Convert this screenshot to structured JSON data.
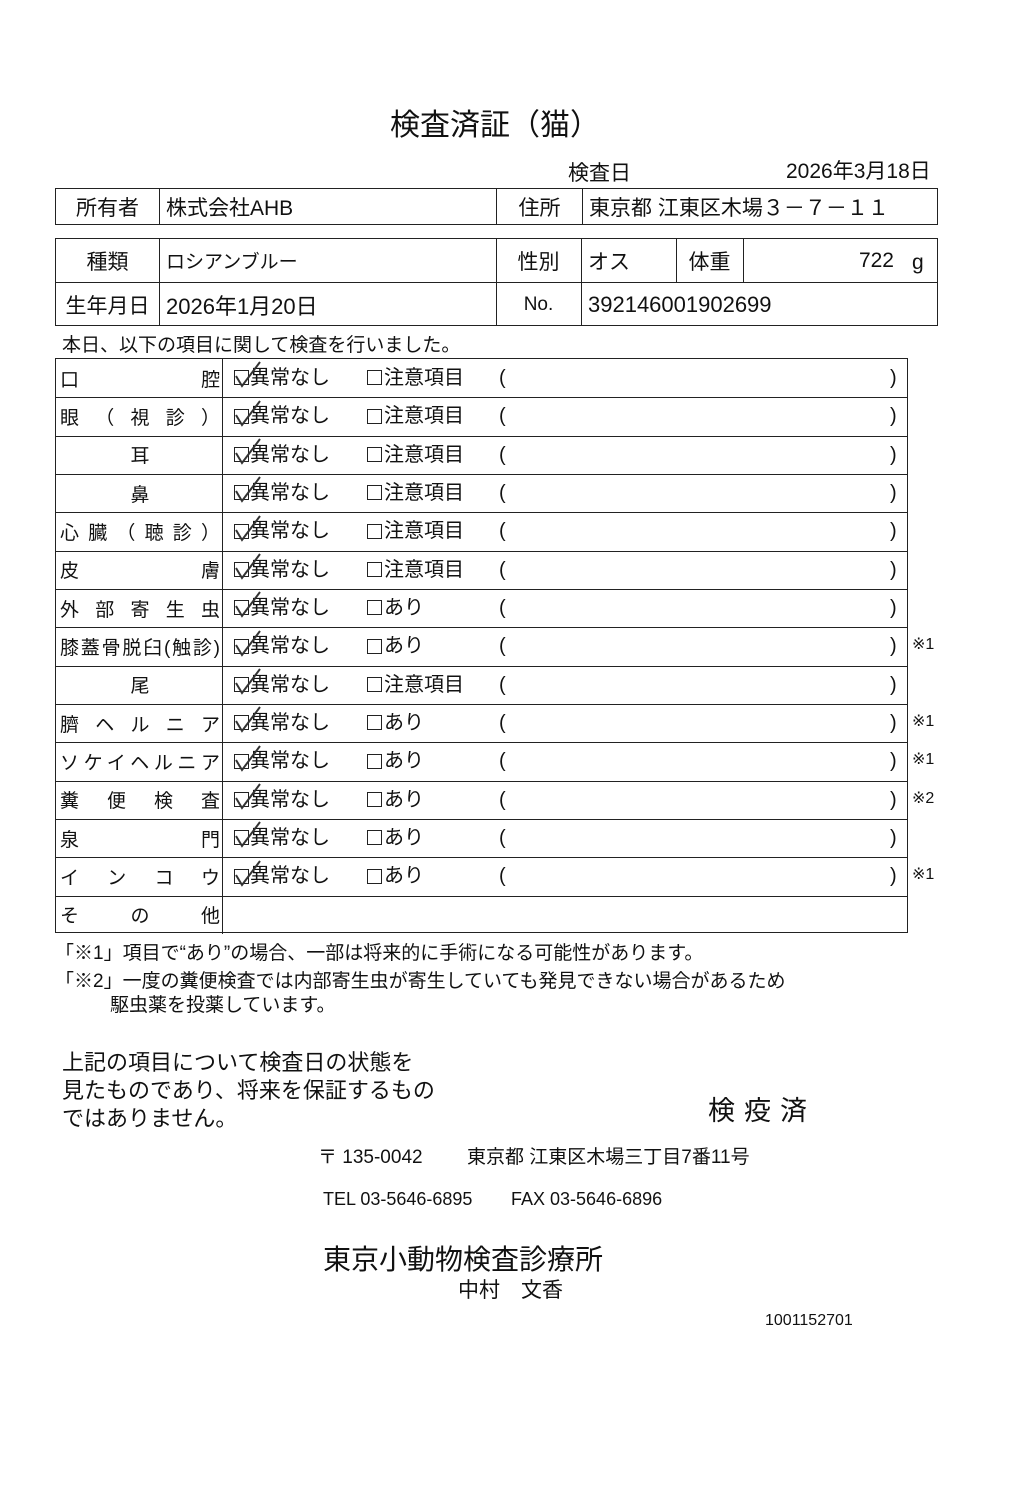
{
  "header": {
    "title": "検査済証（猫）",
    "exam_date_label": "検査日",
    "exam_date": "2026年3月18日"
  },
  "info": {
    "owner_label": "所有者",
    "owner": "株式会社AHB",
    "address_label": "住所",
    "address": "東京都 江東区木場３－７－１１",
    "breed_label": "種類",
    "breed": "ロシアンブルー",
    "sex_label": "性別",
    "sex": "オス",
    "weight_label": "体重",
    "weight": "722",
    "weight_unit": "g",
    "birth_label": "生年月日",
    "birth": "2026年1月20日",
    "no_label": "No.",
    "no": "392146001902699"
  },
  "checklist": {
    "intro": "本日、以下の項目に関して検査を行いました。",
    "paren_open": "(",
    "paren_close": ")",
    "rows": [
      {
        "item": "口腔",
        "normal": "異常なし",
        "other": "注意項目",
        "checked": true
      },
      {
        "item": "眼（視診）",
        "normal": "異常なし",
        "other": "注意項目",
        "checked": true
      },
      {
        "item": "耳",
        "normal": "異常なし",
        "other": "注意項目",
        "checked": true
      },
      {
        "item": "鼻",
        "normal": "異常なし",
        "other": "注意項目",
        "checked": true
      },
      {
        "item": "心臓（聴診）",
        "normal": "異常なし",
        "other": "注意項目",
        "checked": true
      },
      {
        "item": "皮膚",
        "normal": "異常なし",
        "other": "注意項目",
        "checked": true
      },
      {
        "item": "外部寄生虫",
        "normal": "異常なし",
        "other": "あり",
        "checked": true
      },
      {
        "item": "膝蓋骨脱臼(触診)",
        "normal": "異常なし",
        "other": "あり",
        "checked": true,
        "note": "※1"
      },
      {
        "item": "尾",
        "normal": "異常なし",
        "other": "注意項目",
        "checked": true
      },
      {
        "item": "臍ヘルニア",
        "normal": "異常なし",
        "other": "あり",
        "checked": true,
        "note": "※1"
      },
      {
        "item": "ソケイヘルニア",
        "normal": "異常なし",
        "other": "あり",
        "checked": true,
        "note": "※1"
      },
      {
        "item": "糞便検査",
        "normal": "異常なし",
        "other": "あり",
        "checked": true,
        "note": "※2"
      },
      {
        "item": "泉門",
        "normal": "異常なし",
        "other": "あり",
        "checked": true
      },
      {
        "item": "インコウ",
        "normal": "異常なし",
        "other": "あり",
        "checked": true,
        "note": "※1"
      },
      {
        "item": "その他"
      }
    ]
  },
  "footnotes": [
    "「※1」項目で“あり”の場合、一部は将来的に手術になる可能性があります。",
    "「※2」一度の糞便検査では内部寄生虫が寄生していても発見できない場合があるため",
    "駆虫薬を投薬しています。"
  ],
  "disclaimer": [
    "上記の項目について検査日の状態を",
    "見たものであり、将来を保証するもの",
    "ではありません。"
  ],
  "stamp": "検疫済",
  "clinic": {
    "postal": "〒 135-0042",
    "address": "東京都 江東区木場三丁目7番11号",
    "tel": "TEL 03-5646-6895",
    "fax": "FAX 03-5646-6896",
    "name": "東京小動物検査診療所",
    "vet": "中村　文香",
    "code": "1001152701"
  }
}
